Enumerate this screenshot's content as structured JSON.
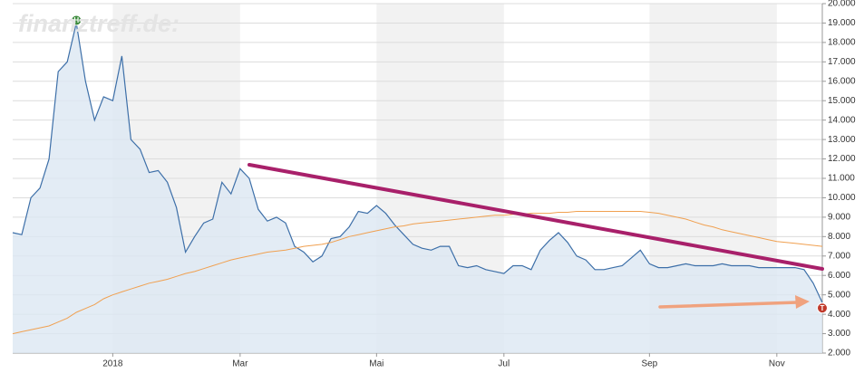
{
  "chart_data": {
    "type": "line",
    "watermark": "finanztreff.de:",
    "high_marker": "H",
    "low_marker": "T",
    "categories": [
      null,
      null,
      null,
      null,
      null,
      null,
      null,
      null,
      null,
      null,
      null,
      "2018",
      null,
      null,
      null,
      null,
      null,
      null,
      null,
      null,
      null,
      null,
      null,
      null,
      null,
      "Mar",
      null,
      null,
      null,
      null,
      null,
      null,
      null,
      null,
      null,
      null,
      null,
      null,
      null,
      null,
      "Mai",
      null,
      null,
      null,
      null,
      null,
      null,
      null,
      null,
      null,
      null,
      null,
      null,
      null,
      "Jul",
      null,
      null,
      null,
      null,
      null,
      null,
      null,
      null,
      null,
      null,
      null,
      null,
      null,
      null,
      null,
      "Sep",
      null,
      null,
      null,
      null,
      null,
      null,
      null,
      null,
      null,
      null,
      null,
      null,
      null,
      "Nov",
      null,
      null,
      null,
      null,
      null
    ],
    "series": [
      {
        "color": "#3d6fa8",
        "values": [
          8200,
          8100,
          10000,
          10500,
          12000,
          16500,
          17000,
          19000,
          16000,
          14000,
          15200,
          15000,
          17300,
          13000,
          12500,
          11300,
          11400,
          10800,
          9500,
          7200,
          8000,
          8700,
          8900,
          10800,
          10200,
          11500,
          11000,
          9400,
          8800,
          9000,
          8700,
          7500,
          7200,
          6700,
          7000,
          7900,
          8000,
          8500,
          9300,
          9200,
          9600,
          9200,
          8600,
          8100,
          7600,
          7400,
          7300,
          7500,
          7500,
          6500,
          6400,
          6500,
          6300,
          6200,
          6100,
          6500,
          6500,
          6300,
          7300,
          7800,
          8200,
          7700,
          7000,
          6800,
          6300,
          6300,
          6400,
          6500,
          6900,
          7300,
          6600,
          6400,
          6400,
          6500,
          6600,
          6500,
          6500,
          6500,
          6600,
          6500,
          6500,
          6500,
          6400,
          6400,
          6400,
          6400,
          6400,
          6300,
          5600,
          4600
        ]
      },
      {
        "color": "#f0a050",
        "values": [
          3000,
          3100,
          3200,
          3300,
          3400,
          3600,
          3800,
          4100,
          4300,
          4500,
          4800,
          5000,
          5150,
          5300,
          5450,
          5600,
          5700,
          5800,
          5950,
          6100,
          6200,
          6350,
          6500,
          6650,
          6800,
          6900,
          7000,
          7100,
          7200,
          7250,
          7300,
          7400,
          7500,
          7550,
          7600,
          7700,
          7850,
          8000,
          8100,
          8200,
          8300,
          8400,
          8500,
          8550,
          8650,
          8700,
          8750,
          8800,
          8850,
          8900,
          8950,
          9000,
          9050,
          9100,
          9100,
          9150,
          9150,
          9200,
          9200,
          9200,
          9250,
          9250,
          9300,
          9300,
          9300,
          9300,
          9300,
          9300,
          9300,
          9300,
          9250,
          9200,
          9100,
          9000,
          8900,
          8750,
          8600,
          8500,
          8350,
          8250,
          8150,
          8050,
          7950,
          7850,
          7750,
          7700,
          7650,
          7600,
          7550,
          7500
        ]
      }
    ],
    "ylim": [
      2000,
      20000
    ],
    "yticks": [
      {
        "value": 2000,
        "label": "2.000"
      },
      {
        "value": 3000,
        "label": "3.000"
      },
      {
        "value": 4000,
        "label": "4.000"
      },
      {
        "value": 5000,
        "label": "5.000"
      },
      {
        "value": 6000,
        "label": "6.000"
      },
      {
        "value": 7000,
        "label": "7.000"
      },
      {
        "value": 8000,
        "label": "8.000"
      },
      {
        "value": 9000,
        "label": "9.000"
      },
      {
        "value": 10000,
        "label": "10.000"
      },
      {
        "value": 11000,
        "label": "11.000"
      },
      {
        "value": 12000,
        "label": "12.000"
      },
      {
        "value": 13000,
        "label": "13.000"
      },
      {
        "value": 14000,
        "label": "14.000"
      },
      {
        "value": 15000,
        "label": "15.000"
      },
      {
        "value": 16000,
        "label": "16.000"
      },
      {
        "value": 17000,
        "label": "17.000"
      },
      {
        "value": 18000,
        "label": "18.000"
      },
      {
        "value": 19000,
        "label": "19.000"
      },
      {
        "value": 20000,
        "label": "20.000"
      }
    ],
    "grid": true
  }
}
